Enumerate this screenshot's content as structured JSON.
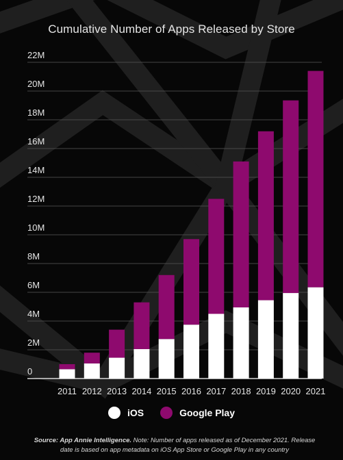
{
  "chart_data": {
    "type": "bar",
    "stacked": true,
    "title": "Cumulative Number of Apps Released by Store",
    "categories": [
      "2011",
      "2012",
      "2013",
      "2014",
      "2015",
      "2016",
      "2017",
      "2018",
      "2019",
      "2020",
      "2021"
    ],
    "series": [
      {
        "name": "iOS",
        "color": "#ffffff",
        "values": [
          0.65,
          1.05,
          1.45,
          2.05,
          2.75,
          3.75,
          4.5,
          4.95,
          5.45,
          5.95,
          6.35
        ]
      },
      {
        "name": "Google Play",
        "color": "#8e0a6e",
        "values": [
          0.35,
          0.75,
          1.95,
          3.25,
          4.45,
          5.95,
          8.0,
          10.15,
          11.75,
          13.4,
          15.05
        ]
      }
    ],
    "ylim": [
      0,
      22
    ],
    "yticks": [
      0,
      2,
      4,
      6,
      8,
      10,
      12,
      14,
      16,
      18,
      20,
      22
    ],
    "ytick_labels": [
      "0",
      "2M",
      "4M",
      "6M",
      "8M",
      "10M",
      "12M",
      "14M",
      "16M",
      "18M",
      "20M",
      "22M"
    ],
    "xlabel": "",
    "ylabel": "",
    "grid": true,
    "legend_position": "bottom"
  },
  "legend": {
    "ios_label": "iOS",
    "gp_label": "Google Play"
  },
  "footnote": {
    "source_label": "Source: App Annie Intelligence.",
    "note_text": "Note: Number of apps released as of December 2021. Release date is based on app metadata on iOS App Store or Google Play in any country"
  }
}
